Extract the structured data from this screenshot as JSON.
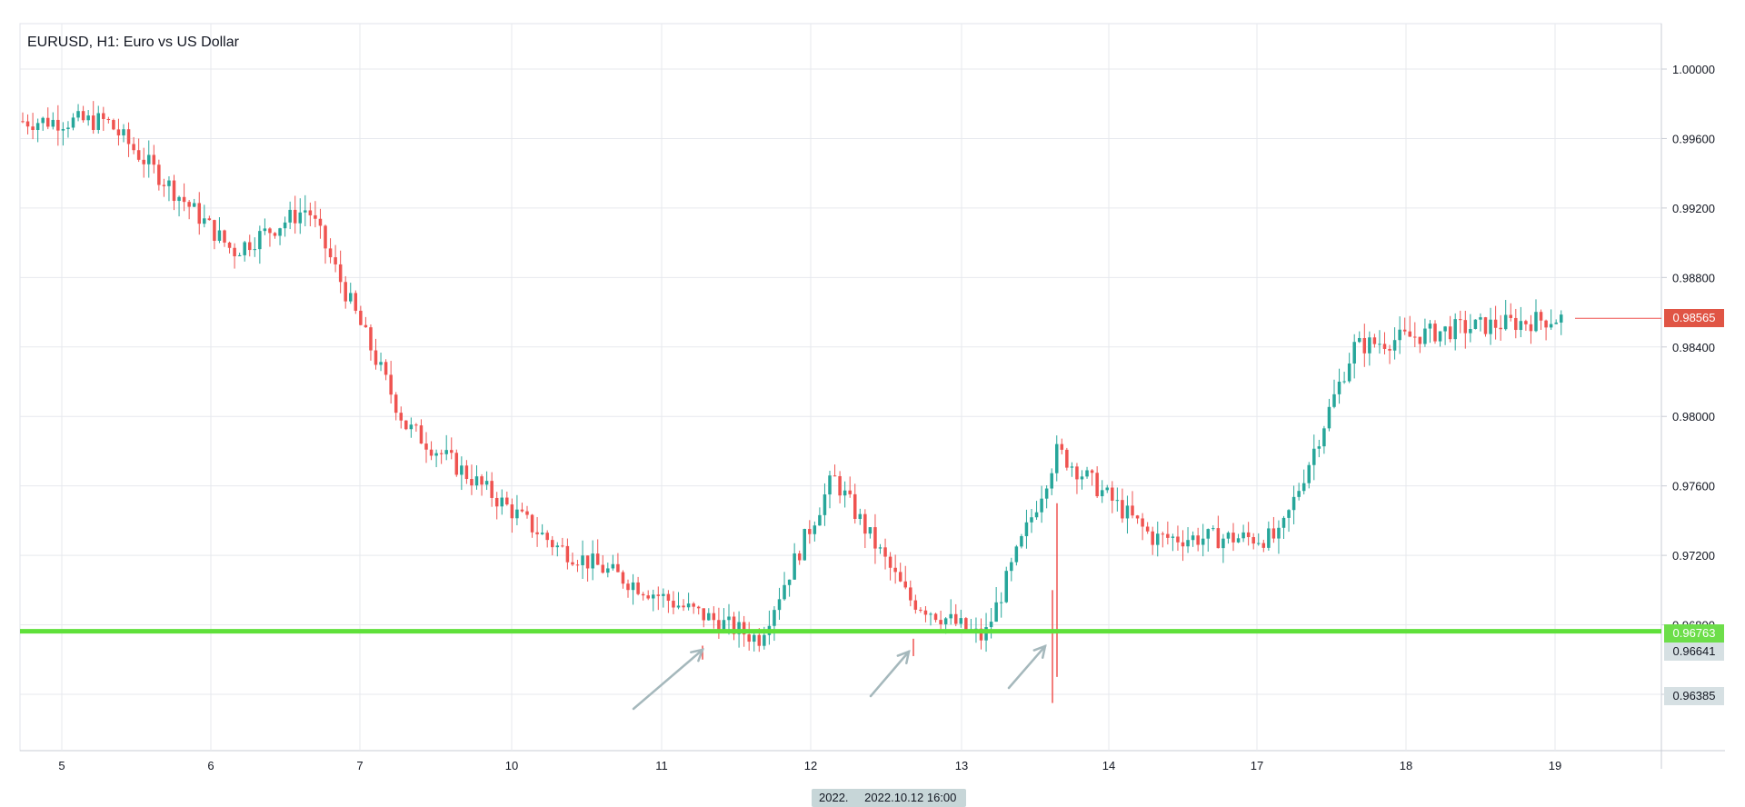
{
  "header": {
    "title": "EURUSD, H1: Euro vs US Dollar"
  },
  "price_tags": {
    "last": "0.98565",
    "level": "0.96763",
    "low1": "0.96641",
    "low2": "0.96385"
  },
  "crosshair": {
    "date_prefix": "2022.",
    "date_full": "2022.10.12 16:00"
  },
  "colors": {
    "up": "#26a69a",
    "down": "#ef5350",
    "level_line": "#5fe03a",
    "grid": "#e7e9ee",
    "arrows": "#a5b8bc"
  },
  "chart_data": {
    "type": "candlestick",
    "title": "EURUSD, H1: Euro vs US Dollar",
    "xlabel": "",
    "ylabel": "",
    "ylim": [
      0.96,
      1.002
    ],
    "y_ticks": [
      "1.00000",
      "0.99600",
      "0.99200",
      "0.98800",
      "0.98400",
      "0.98000",
      "0.97600",
      "0.97200",
      "0.96800",
      "0.96400"
    ],
    "x_tick_labels": [
      "5",
      "6",
      "7",
      "10",
      "11",
      "12",
      "13",
      "14",
      "17",
      "18",
      "19"
    ],
    "horizontal_level": 0.96763,
    "last_price": 0.98565,
    "annotations": [
      "arrow pointing to low near 11",
      "arrow pointing to low near 12",
      "arrow pointing to low near 13"
    ],
    "close_path": [
      {
        "day": "5",
        "close": 0.997
      },
      {
        "day": "6",
        "close": 0.9895
      },
      {
        "day": "6",
        "close": 0.992
      },
      {
        "day": "7",
        "close": 0.9795
      },
      {
        "day": "10",
        "close": 0.9725
      },
      {
        "day": "11",
        "close": 0.969
      },
      {
        "day": "11",
        "close": 0.9672
      },
      {
        "day": "12",
        "close": 0.9765
      },
      {
        "day": "12",
        "close": 0.9695
      },
      {
        "day": "13",
        "close": 0.9672
      },
      {
        "day": "13",
        "close": 0.978
      },
      {
        "day": "14",
        "close": 0.973
      },
      {
        "day": "17",
        "close": 0.973
      },
      {
        "day": "17",
        "close": 0.984
      },
      {
        "day": "18",
        "close": 0.985
      },
      {
        "day": "19",
        "close": 0.98565
      }
    ]
  }
}
